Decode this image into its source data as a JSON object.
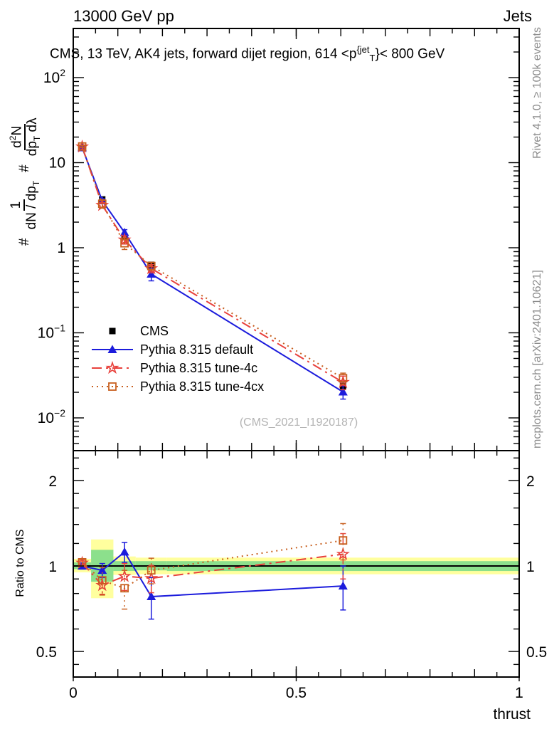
{
  "header": {
    "left": "13000 GeV pp",
    "right": "Jets"
  },
  "title_parts": {
    "a": "CMS, 13 TeV, AK4 jets, forward dijet region, 614 <p",
    "sup": "{jet",
    "sub": "T",
    "b": "}< 800 GeV"
  },
  "ylabel_parts": {
    "h1": "#",
    "f1num": "1",
    "f1den_a": "dN / dp",
    "f1den_sub": "T",
    "h2": "#",
    "f2num_a": "d",
    "f2num_sup": "2",
    "f2num_b": "N",
    "f2den_a": "dp",
    "f2den_sub": "T",
    "f2den_b": "dλ"
  },
  "ratio_label": "Ratio to CMS",
  "watermark": "(CMS_2021_I1920187)",
  "xlabel": "thrust",
  "side_notes": {
    "top": "Rivet 4.1.0, ≥ 100k events",
    "bottom": "mcplots.cern.ch [arXiv:2401.10621]"
  },
  "colors": {
    "cms": "#000000",
    "pythia_default": "#1c1cdc",
    "tune4c": "#e8413c",
    "tune4cx": "#c86020",
    "band_green": "#8ce08c",
    "band_yellow": "#ffff9e",
    "note_gray": "#8c8c8c"
  },
  "chart_data": {
    "type": "line",
    "title": "CMS, 13 TeV, AK4 jets, forward dijet region, 614 <p_T^{jet}< 800 GeV",
    "xlabel": "thrust",
    "ylabel": "# 1/(dN/dp_T) # d2N/(dp_T dlambda)",
    "ratio_ylabel": "Ratio to CMS",
    "xlim": [
      0,
      1
    ],
    "top_ylim": [
      0.0042,
      377
    ],
    "ratio_ylim": [
      0.407,
      2.49
    ],
    "x": [
      0.02,
      0.065,
      0.115,
      0.175,
      0.605
    ],
    "series": [
      {
        "name": "CMS",
        "color": "#000000",
        "marker": "filled-square",
        "line": "none",
        "y": [
          15.0,
          3.7,
          1.35,
          0.63,
          0.0238
        ],
        "yerr": [
          0.5,
          0.12,
          0.05,
          0.025,
          0.0018
        ]
      },
      {
        "name": "Pythia 8.315 default",
        "color": "#1c1cdc",
        "marker": "filled-triangle",
        "line": "solid",
        "y": [
          15.0,
          3.57,
          1.51,
          0.49,
          0.0202
        ],
        "ratio": [
          1.0,
          0.965,
          1.12,
          0.78,
          0.85
        ],
        "ratio_err": [
          0.025,
          0.055,
          0.09,
          0.13,
          0.15
        ]
      },
      {
        "name": "Pythia 8.315 tune-4c",
        "color": "#e8413c",
        "marker": "open-star",
        "line": "dash-dot",
        "y": [
          15.4,
          3.16,
          1.24,
          0.57,
          0.0262
        ],
        "ratio": [
          1.025,
          0.855,
          0.92,
          0.905,
          1.1
        ],
        "ratio_err": [
          0.025,
          0.06,
          0.1,
          0.1,
          0.2
        ]
      },
      {
        "name": "Pythia 8.315 tune-4cx",
        "color": "#c86020",
        "marker": "open-square",
        "line": "dotted",
        "y": [
          15.5,
          3.29,
          1.13,
          0.61,
          0.0293
        ],
        "ratio": [
          1.03,
          0.89,
          0.835,
          0.965,
          1.23
        ],
        "ratio_err": [
          0.03,
          0.1,
          0.13,
          0.1,
          0.18
        ]
      }
    ],
    "bands": {
      "yellow": [
        [
          0.0,
          0.04,
          0.95,
          1.06
        ],
        [
          0.04,
          0.09,
          0.77,
          1.24
        ],
        [
          0.09,
          0.14,
          0.93,
          1.08
        ],
        [
          0.14,
          0.21,
          0.935,
          1.07
        ],
        [
          0.21,
          1.0,
          0.935,
          1.07
        ]
      ],
      "green": [
        [
          0.0,
          0.04,
          0.975,
          1.03
        ],
        [
          0.04,
          0.09,
          0.88,
          1.14
        ],
        [
          0.09,
          0.14,
          0.96,
          1.04
        ],
        [
          0.14,
          0.21,
          0.965,
          1.04
        ],
        [
          0.21,
          1.0,
          0.96,
          1.04
        ]
      ]
    },
    "xticks": [
      {
        "v": 0,
        "l": "0"
      },
      {
        "v": 0.5,
        "l": "0.5"
      },
      {
        "v": 1,
        "l": "1"
      }
    ],
    "top_yticks": [
      {
        "v": 100,
        "base": "10",
        "exp": "2"
      },
      {
        "v": 10,
        "base": "10",
        "exp": ""
      },
      {
        "v": 1,
        "base": "1",
        "exp": ""
      },
      {
        "v": 0.1,
        "base": "10",
        "exp": "−1"
      },
      {
        "v": 0.01,
        "base": "10",
        "exp": "−2"
      }
    ],
    "ratio_yticks": [
      {
        "v": 2,
        "l": "2"
      },
      {
        "v": 1,
        "l": "1"
      },
      {
        "v": 0.5,
        "l": "0.5"
      }
    ],
    "ratio_minor_ticks": [
      0.45,
      0.6,
      0.7,
      0.8,
      0.9,
      1.2,
      1.4,
      1.6,
      1.8,
      2.2,
      2.4
    ],
    "legend_position": "middle-left",
    "grid": false
  }
}
